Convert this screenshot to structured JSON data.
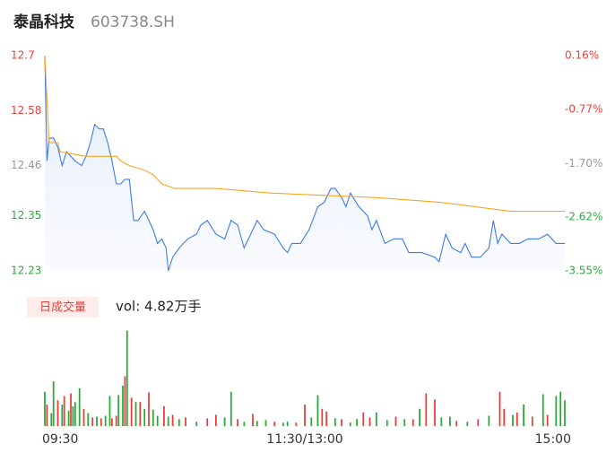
{
  "header": {
    "name": "泰晶科技",
    "code": "603738.SH"
  },
  "volume_tab": "日成交量",
  "volume_label": "vol: 4.82万手",
  "chart_data": [
    {
      "type": "line",
      "xlim": [
        0,
        240
      ],
      "ylim": [
        12.23,
        12.7
      ],
      "yticks": [
        12.23,
        12.35,
        12.46,
        12.58,
        12.7
      ],
      "y2lim": [
        -3.55,
        0.16
      ],
      "y2ticks": [
        {
          "value": -3.55,
          "label": "-3.55%"
        },
        {
          "value": -2.62,
          "label": "-2.62%"
        },
        {
          "value": -1.7,
          "label": "-1.70%"
        },
        {
          "value": -0.77,
          "label": "-0.77%"
        },
        {
          "value": 0.16,
          "label": "0.16%"
        }
      ],
      "grid": false,
      "series": [
        {
          "color": "#3d7be6",
          "fill": true,
          "x": [
            0,
            1,
            2,
            4,
            6,
            8,
            10,
            12,
            14,
            17,
            19,
            21,
            23,
            25,
            27,
            29,
            31,
            33,
            35,
            37,
            39,
            41,
            43,
            46,
            48,
            50,
            52,
            54,
            56,
            57,
            59,
            62,
            66,
            70,
            72,
            75,
            79,
            83,
            86,
            89,
            92,
            95,
            98,
            101,
            106,
            110,
            112,
            114,
            118,
            122,
            126,
            129,
            132,
            134,
            137,
            139,
            141,
            145,
            149,
            151,
            153,
            157,
            161,
            165,
            168,
            174,
            180,
            182,
            185,
            188,
            192,
            194,
            197,
            201,
            205,
            207,
            209,
            211,
            215,
            219,
            223,
            228,
            232,
            236,
            240
          ],
          "values": [
            12.7,
            12.47,
            12.52,
            12.52,
            12.5,
            12.46,
            12.49,
            12.48,
            12.47,
            12.46,
            12.48,
            12.51,
            12.55,
            12.54,
            12.54,
            12.51,
            12.47,
            12.42,
            12.42,
            12.43,
            12.43,
            12.34,
            12.34,
            12.36,
            12.34,
            12.32,
            12.29,
            12.3,
            12.28,
            12.23,
            12.26,
            12.28,
            12.3,
            12.31,
            12.33,
            12.34,
            12.31,
            12.3,
            12.34,
            12.33,
            12.28,
            12.31,
            12.34,
            12.32,
            12.31,
            12.28,
            12.27,
            12.29,
            12.29,
            12.32,
            12.37,
            12.38,
            12.41,
            12.41,
            12.39,
            12.37,
            12.4,
            12.37,
            12.35,
            12.32,
            12.34,
            12.29,
            12.3,
            12.3,
            12.27,
            12.27,
            12.26,
            12.25,
            12.31,
            12.28,
            12.27,
            12.29,
            12.26,
            12.26,
            12.28,
            12.34,
            12.29,
            12.31,
            12.29,
            12.29,
            12.3,
            12.3,
            12.31,
            12.29,
            12.29
          ]
        },
        {
          "color": "#f5a623",
          "fill": false,
          "x": [
            0,
            2,
            6,
            7,
            19,
            33,
            35,
            39,
            46,
            50,
            54,
            60,
            79,
            104,
            153,
            182,
            215,
            240
          ],
          "values": [
            12.7,
            12.51,
            12.51,
            12.49,
            12.48,
            12.48,
            12.47,
            12.46,
            12.45,
            12.44,
            12.42,
            12.41,
            12.41,
            12.4,
            12.39,
            12.38,
            12.36,
            12.36
          ]
        }
      ]
    },
    {
      "type": "bar",
      "xlim": [
        0,
        240
      ],
      "ylim": [
        0,
        1200
      ],
      "xticks": [
        {
          "value": 0,
          "label": "09:30"
        },
        {
          "value": 120,
          "label": "11:30/13:00"
        },
        {
          "value": 240,
          "label": "15:00"
        }
      ],
      "x": [
        0,
        1,
        3,
        4,
        6,
        8,
        9,
        11,
        12,
        13,
        14,
        16,
        18,
        20,
        22,
        24,
        26,
        28,
        30,
        31,
        33,
        34,
        36,
        37,
        38,
        40,
        42,
        44,
        46,
        48,
        50,
        52,
        55,
        57,
        59,
        62,
        65,
        70,
        75,
        79,
        83,
        86,
        89,
        92,
        96,
        98,
        102,
        106,
        110,
        112,
        116,
        120,
        123,
        126,
        128,
        130,
        134,
        137,
        141,
        144,
        147,
        150,
        153,
        158,
        162,
        166,
        170,
        173,
        176,
        180,
        183,
        187,
        190,
        195,
        200,
        205,
        210,
        212,
        216,
        218,
        221,
        225,
        230,
        232,
        236,
        238,
        240
      ],
      "values": [
        400,
        250,
        150,
        520,
        300,
        250,
        350,
        180,
        380,
        230,
        280,
        440,
        200,
        150,
        100,
        110,
        90,
        120,
        350,
        90,
        120,
        360,
        470,
        580,
        1110,
        330,
        280,
        280,
        200,
        390,
        190,
        120,
        230,
        110,
        130,
        80,
        100,
        50,
        90,
        130,
        100,
        400,
        80,
        50,
        140,
        60,
        70,
        50,
        40,
        50,
        40,
        250,
        100,
        360,
        200,
        170,
        90,
        80,
        40,
        80,
        160,
        100,
        160,
        70,
        110,
        80,
        80,
        200,
        380,
        310,
        100,
        110,
        60,
        50,
        80,
        120,
        400,
        200,
        130,
        160,
        250,
        110,
        370,
        130,
        350,
        400,
        300
      ],
      "colors": [
        "#2eaa3c",
        "#e8413b",
        "#2eaa3c",
        "#2eaa3c",
        "#e8413b",
        "#2eaa3c",
        "#e8413b",
        "#2eaa3c",
        "#e8413b",
        "#2eaa3c",
        "#2eaa3c",
        "#2eaa3c",
        "#e8413b",
        "#2eaa3c",
        "#e8413b",
        "#2eaa3c",
        "#e8413b",
        "#2eaa3c",
        "#2eaa3c",
        "#e8413b",
        "#e8413b",
        "#2eaa3c",
        "#2eaa3c",
        "#e8413b",
        "#2eaa3c",
        "#e8413b",
        "#2eaa3c",
        "#e8413b",
        "#2eaa3c",
        "#e8413b",
        "#2eaa3c",
        "#2eaa3c",
        "#e8413b",
        "#2eaa3c",
        "#e8413b",
        "#2eaa3c",
        "#e8413b",
        "#2eaa3c",
        "#e8413b",
        "#e8413b",
        "#2eaa3c",
        "#2eaa3c",
        "#e8413b",
        "#2eaa3c",
        "#e8413b",
        "#2eaa3c",
        "#2eaa3c",
        "#e8413b",
        "#2eaa3c",
        "#2eaa3c",
        "#e8413b",
        "#e8413b",
        "#2eaa3c",
        "#2eaa3c",
        "#e8413b",
        "#e8413b",
        "#2eaa3c",
        "#e8413b",
        "#2eaa3c",
        "#2eaa3c",
        "#e8413b",
        "#e8413b",
        "#2eaa3c",
        "#2eaa3c",
        "#e8413b",
        "#2eaa3c",
        "#e8413b",
        "#2eaa3c",
        "#e8413b",
        "#e8413b",
        "#2eaa3c",
        "#2eaa3c",
        "#e8413b",
        "#2eaa3c",
        "#e8413b",
        "#2eaa3c",
        "#e8413b",
        "#e8413b",
        "#2eaa3c",
        "#e8413b",
        "#2eaa3c",
        "#e8413b",
        "#2eaa3c",
        "#e8413b",
        "#2eaa3c",
        "#2eaa3c",
        "#2eaa3c"
      ]
    }
  ]
}
